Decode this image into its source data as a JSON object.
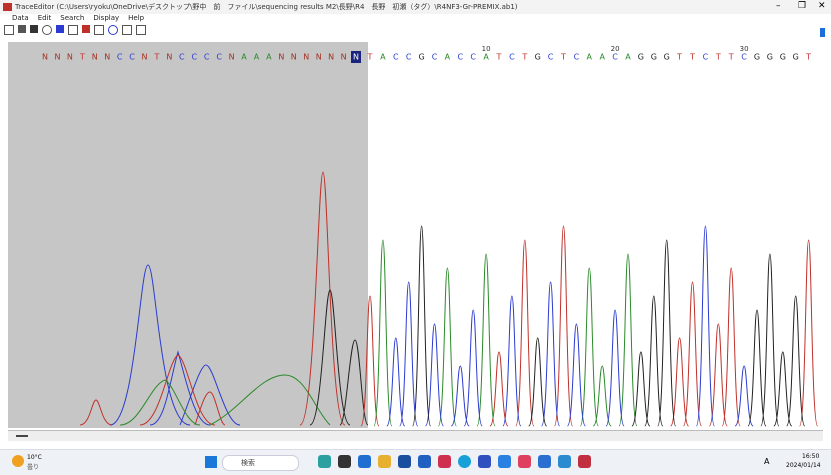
{
  "window": {
    "title": "TraceEditor (C:\\Users\\ryoku\\OneDrive\\デスクトップ\\野中　前　ファイル\\sequencing results M2\\長野\\R4　長野　初瀬（タグ）\\R4NF3-Gr-PREMIX.ab1)",
    "controls": [
      "–",
      "❐",
      "✕"
    ]
  },
  "menu": [
    "Data",
    "Edit",
    "Search",
    "Display",
    "Help"
  ],
  "sequence": {
    "bases": [
      "N",
      "N",
      "N",
      "T",
      "N",
      "N",
      "C",
      "C",
      "N",
      "T",
      "N",
      "C",
      "C",
      "C",
      "C",
      "N",
      "A",
      "A",
      "A",
      "N",
      "N",
      "N",
      "N",
      "N",
      "N",
      "N",
      "T",
      "A",
      "C",
      "C",
      "G",
      "C",
      "A",
      "C",
      "C",
      "A",
      "T",
      "C",
      "T",
      "G",
      "C",
      "T",
      "C",
      "A",
      "A",
      "C",
      "A",
      "G",
      "G",
      "G",
      "T",
      "T",
      "C",
      "T",
      "T",
      "C",
      "G",
      "G",
      "G",
      "G",
      "T"
    ],
    "selected": 25,
    "positions": [
      10,
      20,
      30
    ],
    "base_colors": {
      "A": "#2a8a2a",
      "C": "#2b3bd0",
      "G": "#222222",
      "T": "#c0302a",
      "N": "#a03020"
    }
  },
  "taskbar": {
    "weather_temp": "10°C",
    "weather_text": "曇り",
    "search": "検索",
    "ime": "A",
    "time": "16:50",
    "date": "2024/01/14"
  }
}
